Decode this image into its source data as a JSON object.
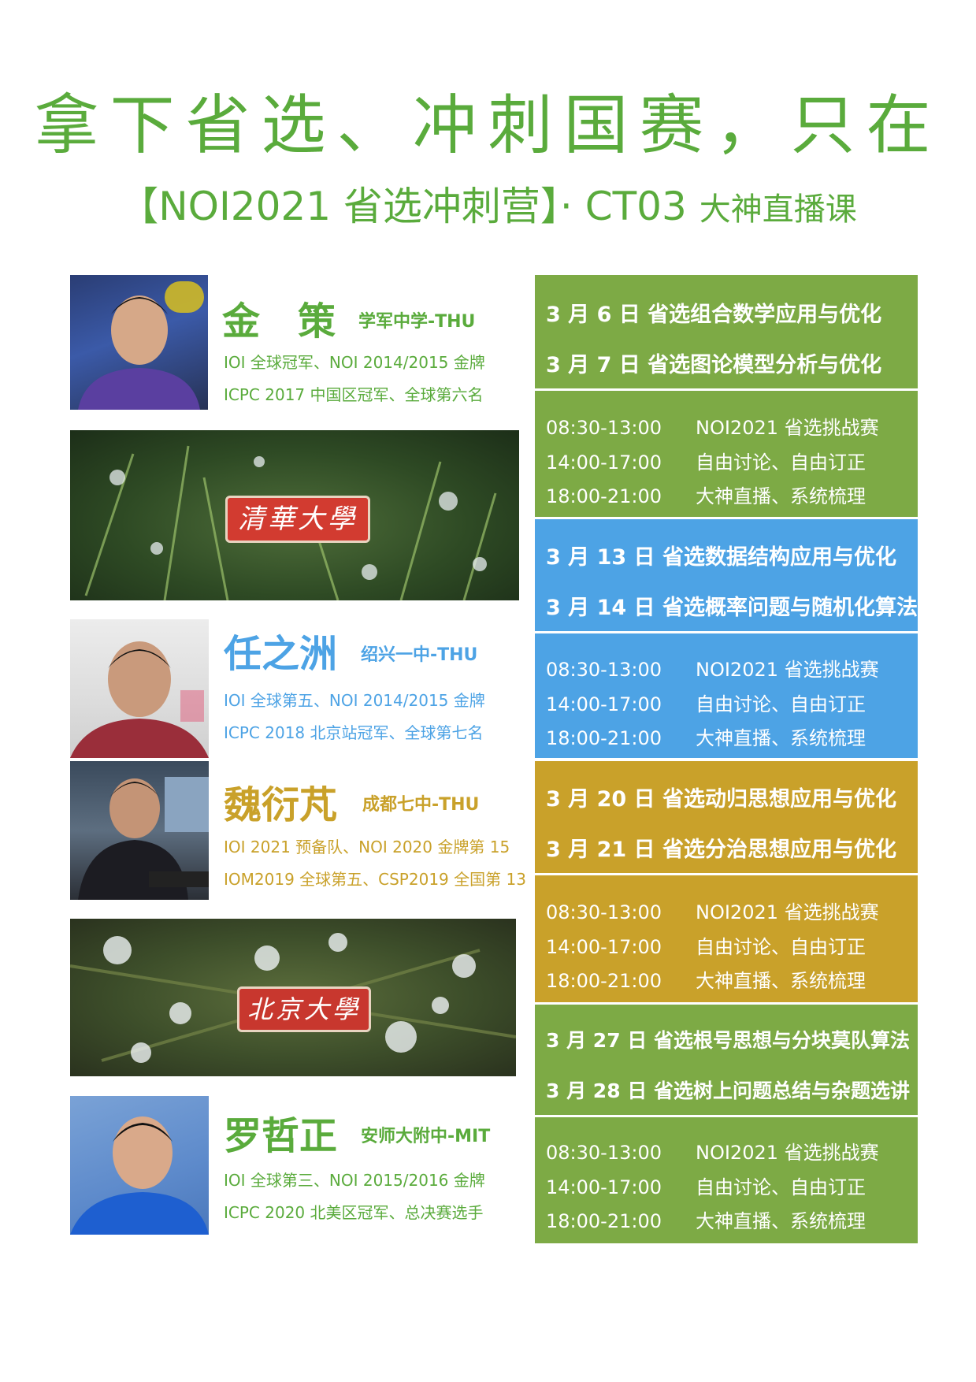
{
  "header": {
    "line1": "拿下省选、冲刺国赛，只在",
    "line2_main": "【NOI2021 省选冲刺营】· CT03",
    "line2_suffix": "大神直播课"
  },
  "colors": {
    "green": "#7daa45",
    "blue": "#4da3e5",
    "gold": "#c9a12a",
    "title_green": "#5aab3c"
  },
  "teachers": [
    {
      "name": "金　策",
      "school": "学军中学-THU",
      "color": "#5aab3c",
      "ach1": "IOI  全球冠军、NOI 2014/2015  金牌",
      "ach2": "ICPC 2017 中国区冠军、全球第六名"
    },
    {
      "name": "任之洲",
      "school": "绍兴一中-THU",
      "color": "#4da3e5",
      "ach1": "IOI  全球第五、NOI 2014/2015  金牌",
      "ach2": "ICPC 2018 北京站冠军、全球第七名"
    },
    {
      "name": "魏衍芃",
      "school": "成都七中-THU",
      "color": "#c9a12a",
      "ach1": "IOI 2021 预备队、NOI 2020 金牌第 15",
      "ach2": "IOM2019 全球第五、CSP2019 全国第 13"
    },
    {
      "name": "罗哲正",
      "school": "安师大附中-MIT",
      "color": "#5aab3c",
      "ach1": "IOI  全球第三、NOI 2015/2016  金牌",
      "ach2": "ICPC 2020 北美区冠军、总决赛选手"
    }
  ],
  "badges": {
    "tsinghua": "清華大學",
    "peking": "北京大學"
  },
  "weeks": [
    {
      "d1": "3 月 6 日  省选组合数学应用与优化",
      "d2": "3 月 7 日  省选图论模型分析与优化"
    },
    {
      "d1": "3 月 13 日  省选数据结构应用与优化",
      "d2": "3 月 14 日  省选概率问题与随机化算法"
    },
    {
      "d1": "3 月 20 日  省选动归思想应用与优化",
      "d2": "3 月 21 日  省选分治思想应用与优化"
    },
    {
      "d1": "3 月 27 日  省选根号思想与分块莫队算法",
      "d2": "3 月 28 日  省选树上问题总结与杂题选讲"
    }
  ],
  "schedule": [
    {
      "time": "08:30-13:00",
      "desc": "NOI2021 省选挑战赛"
    },
    {
      "time": "14:00-17:00",
      "desc": "自由讨论、自由订正"
    },
    {
      "time": "18:00-21:00",
      "desc": "大神直播、系统梳理"
    }
  ]
}
